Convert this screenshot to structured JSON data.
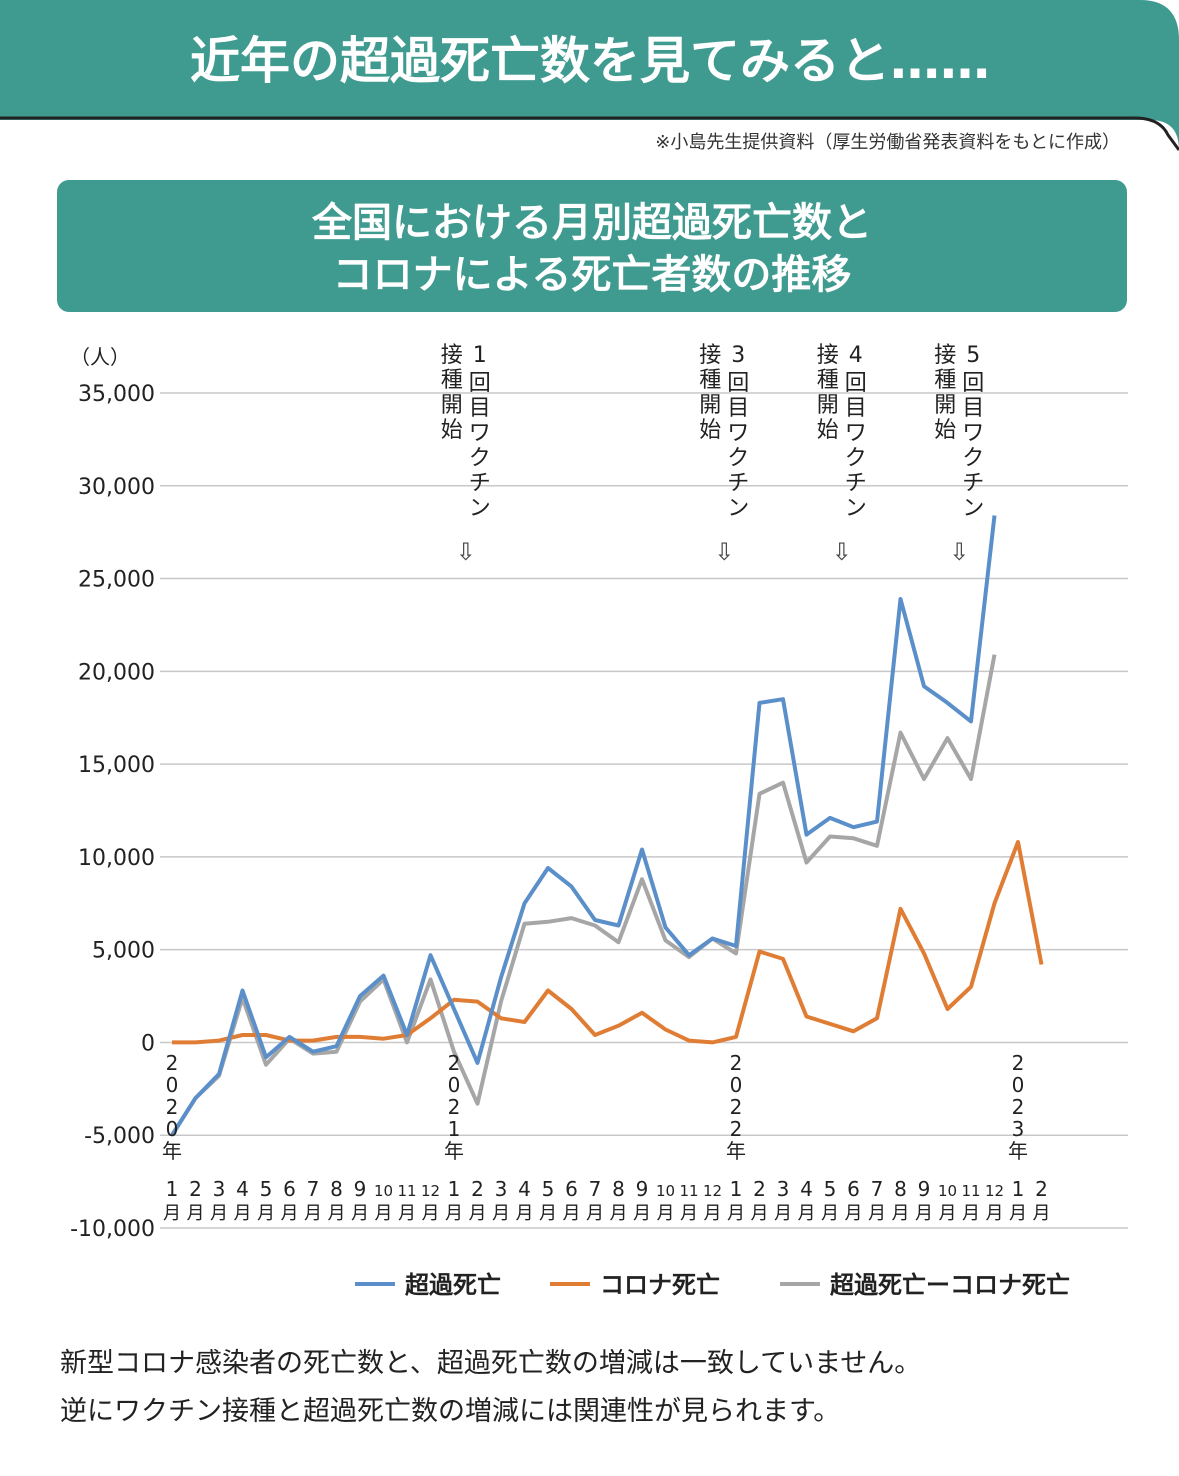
{
  "header": {
    "title": "近年の超過死亡数を見てみると……",
    "source_note": "※小島先生提供資料（厚生労働省発表資料をもとに作成）"
  },
  "colors": {
    "header_bg": "#3f9a8f",
    "excess": "#5b8fc9",
    "covid": "#e07d35",
    "diff": "#a6a6a6",
    "grid": "#c8c8c8"
  },
  "chart_data": {
    "type": "line",
    "title_line1": "全国における月別超過死亡数と",
    "title_line2": "コロナによる死亡者数の推移",
    "ylabel": "（人）",
    "ylim": [
      -10000,
      35000
    ],
    "yticks": [
      "35,000",
      "30,000",
      "25,000",
      "20,000",
      "15,000",
      "10,000",
      "5,000",
      "0",
      "-5,000",
      "-10,000"
    ],
    "ytick_values": [
      35000,
      30000,
      25000,
      20000,
      15000,
      10000,
      5000,
      0,
      -5000,
      -10000
    ],
    "grid": true,
    "legend_position": "bottom-right",
    "month_labels": [
      "1",
      "2",
      "3",
      "4",
      "5",
      "6",
      "7",
      "8",
      "9",
      "10",
      "11",
      "12",
      "1",
      "2",
      "3",
      "4",
      "5",
      "6",
      "7",
      "8",
      "9",
      "10",
      "11",
      "12",
      "1",
      "2",
      "3",
      "4",
      "5",
      "6",
      "7",
      "8",
      "9",
      "10",
      "11",
      "12",
      "1",
      "2"
    ],
    "month_suffix": "月",
    "year_labels": [
      {
        "index": 0,
        "text": "2020年"
      },
      {
        "index": 12,
        "text": "2021年"
      },
      {
        "index": 24,
        "text": "2022年"
      },
      {
        "index": 36,
        "text": "2023年"
      }
    ],
    "series": [
      {
        "name": "超過死亡",
        "color": "#5b8fc9",
        "values": [
          -5000,
          -3000,
          -1700,
          2800,
          -800,
          300,
          -500,
          -200,
          2500,
          3600,
          400,
          4700,
          1800,
          -1100,
          3500,
          7500,
          9400,
          8400,
          6600,
          6300,
          10400,
          6200,
          4700,
          5600,
          5200,
          18300,
          18500,
          11200,
          12100,
          11600,
          11900,
          23900,
          19200,
          18300,
          17300,
          28400
        ]
      },
      {
        "name": "コロナ死亡",
        "color": "#e07d35",
        "values": [
          0,
          0,
          100,
          400,
          400,
          100,
          100,
          300,
          300,
          200,
          400,
          1300,
          2300,
          2200,
          1300,
          1100,
          2800,
          1800,
          400,
          900,
          1600,
          700,
          100,
          0,
          300,
          4900,
          4500,
          1400,
          1000,
          600,
          1300,
          7200,
          4800,
          1800,
          3000,
          7500,
          10800,
          4200
        ]
      },
      {
        "name": "超過死亡ーコロナ死亡",
        "color": "#a6a6a6",
        "values": [
          -5000,
          -3000,
          -1800,
          2400,
          -1200,
          200,
          -600,
          -500,
          2200,
          3400,
          0,
          3400,
          -500,
          -3300,
          2200,
          6400,
          6500,
          6700,
          6300,
          5400,
          8800,
          5500,
          4600,
          5600,
          4800,
          13400,
          14000,
          9700,
          11100,
          11000,
          10600,
          16700,
          14200,
          16400,
          14200,
          20900
        ]
      }
    ],
    "annotations": [
      {
        "index": 12.5,
        "number": "1",
        "text_right": "回目ワクチン",
        "text_left": "接種開始",
        "arrow": "⇩"
      },
      {
        "index": 23.5,
        "number": "3",
        "text_right": "回目ワクチン",
        "text_left": "接種開始",
        "arrow": "⇩"
      },
      {
        "index": 28.5,
        "number": "4",
        "text_right": "回目ワクチン",
        "text_left": "接種開始",
        "arrow": "⇩"
      },
      {
        "index": 33.5,
        "number": "5",
        "text_right": "回目ワクチン",
        "text_left": "接種開始",
        "arrow": "⇩"
      }
    ]
  },
  "caption": {
    "line1": "新型コロナ感染者の死亡数と、超過死亡数の増減は一致していません。",
    "line2": "逆にワクチン接種と超過死亡数の増減には関連性が見られます。"
  }
}
